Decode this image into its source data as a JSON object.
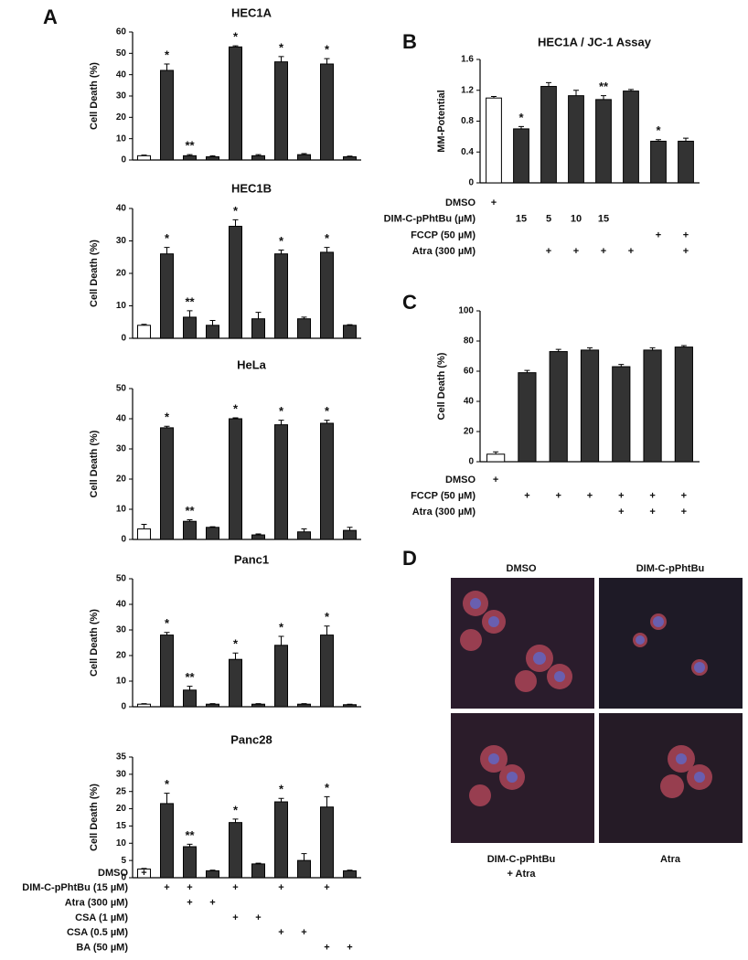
{
  "panel_letters": [
    "A",
    "B",
    "C",
    "D"
  ],
  "chart_data": [
    {
      "type": "bar",
      "title": "HEC1A",
      "y_label": "Cell Death (%)",
      "ylim": [
        0,
        60
      ],
      "yticks": [
        0,
        10,
        20,
        30,
        40,
        50,
        60
      ],
      "values": [
        2,
        42,
        2,
        1.5,
        53,
        2,
        46,
        2.5,
        45,
        1.5
      ],
      "errors": [
        0.3,
        3,
        0.5,
        0.5,
        0.5,
        0.5,
        2.5,
        0.5,
        2.5,
        0.3
      ],
      "stars": [
        null,
        "*",
        "**",
        null,
        "*",
        null,
        "*",
        null,
        "*",
        null
      ],
      "colors": [
        "#ffffff",
        "#333333",
        "#333333",
        "#333333",
        "#333333",
        "#333333",
        "#333333",
        "#333333",
        "#333333",
        "#333333"
      ]
    },
    {
      "type": "bar",
      "title": "HEC1B",
      "y_label": "Cell Death (%)",
      "ylim": [
        0,
        40
      ],
      "yticks": [
        0,
        10,
        20,
        30,
        40
      ],
      "values": [
        4,
        26,
        6.5,
        4,
        34.5,
        6,
        26,
        6,
        26.5,
        4
      ],
      "errors": [
        0.3,
        2,
        2,
        1.5,
        2,
        2,
        1.2,
        0.5,
        1.5,
        0.2
      ],
      "stars": [
        null,
        "*",
        "**",
        null,
        "*",
        null,
        "*",
        null,
        "*",
        null
      ],
      "colors": [
        "#ffffff",
        "#333333",
        "#333333",
        "#333333",
        "#333333",
        "#333333",
        "#333333",
        "#333333",
        "#333333",
        "#333333"
      ]
    },
    {
      "type": "bar",
      "title": "HeLa",
      "y_label": "Cell Death (%)",
      "ylim": [
        0,
        50
      ],
      "yticks": [
        0,
        10,
        20,
        30,
        40,
        50
      ],
      "values": [
        3.5,
        37,
        6,
        4,
        40,
        1.5,
        38,
        2.5,
        38.5,
        3
      ],
      "errors": [
        1.5,
        0.5,
        0.5,
        0.2,
        0.3,
        0.3,
        1.5,
        1,
        1,
        1
      ],
      "stars": [
        null,
        "*",
        "**",
        null,
        "*",
        null,
        "*",
        null,
        "*",
        null
      ],
      "colors": [
        "#ffffff",
        "#333333",
        "#333333",
        "#333333",
        "#333333",
        "#333333",
        "#333333",
        "#333333",
        "#333333",
        "#333333"
      ]
    },
    {
      "type": "bar",
      "title": "Panc1",
      "y_label": "Cell Death (%)",
      "ylim": [
        0,
        50
      ],
      "yticks": [
        0,
        10,
        20,
        30,
        40,
        50
      ],
      "values": [
        1,
        28,
        6.5,
        1,
        18.5,
        1,
        24,
        1,
        28,
        0.8
      ],
      "errors": [
        0.2,
        1,
        1.5,
        0.2,
        2.5,
        0.2,
        3.5,
        0.2,
        3.5,
        0.2
      ],
      "stars": [
        null,
        "*",
        "**",
        null,
        "*",
        null,
        "*",
        null,
        "*",
        null
      ],
      "colors": [
        "#ffffff",
        "#333333",
        "#333333",
        "#333333",
        "#333333",
        "#333333",
        "#333333",
        "#333333",
        "#333333",
        "#333333"
      ]
    },
    {
      "type": "bar",
      "title": "Panc28",
      "y_label": "Cell Death (%)",
      "ylim": [
        0,
        35
      ],
      "yticks": [
        0,
        5,
        10,
        15,
        20,
        25,
        30,
        35
      ],
      "values": [
        2.5,
        21.5,
        9,
        2,
        16,
        4,
        22,
        5,
        20.5,
        2
      ],
      "errors": [
        0.2,
        3,
        0.7,
        0.2,
        1,
        0.2,
        1,
        2,
        3,
        0.2
      ],
      "stars": [
        null,
        "*",
        "**",
        null,
        "*",
        null,
        "*",
        null,
        "*",
        null
      ],
      "colors": [
        "#ffffff",
        "#333333",
        "#333333",
        "#333333",
        "#333333",
        "#333333",
        "#333333",
        "#333333",
        "#333333",
        "#333333"
      ]
    },
    {
      "type": "bar",
      "title": "HEC1A / JC-1 Assay",
      "y_label": "MM-Potential",
      "ylim": [
        0,
        1.6
      ],
      "yticks": [
        0,
        0.4,
        0.8,
        1.2,
        1.6
      ],
      "values": [
        1.1,
        0.7,
        1.25,
        1.13,
        1.08,
        1.19,
        0.54,
        0.54
      ],
      "errors": [
        0.02,
        0.03,
        0.05,
        0.07,
        0.05,
        0.02,
        0.02,
        0.04
      ],
      "stars": [
        null,
        "*",
        null,
        null,
        "**",
        null,
        "*",
        null
      ],
      "colors": [
        "#ffffff",
        "#333333",
        "#333333",
        "#333333",
        "#333333",
        "#333333",
        "#333333",
        "#333333"
      ]
    },
    {
      "type": "bar",
      "y_label": "Cell Death (%)",
      "ylim": [
        0,
        100
      ],
      "yticks": [
        0,
        20,
        40,
        60,
        80,
        100
      ],
      "values": [
        5,
        59,
        73,
        74,
        63,
        74,
        76
      ],
      "errors": [
        1.5,
        1.5,
        1.5,
        1.5,
        1.5,
        1.5,
        1
      ],
      "stars": [
        null,
        null,
        null,
        null,
        null,
        null,
        null
      ],
      "colors": [
        "#ffffff",
        "#333333",
        "#333333",
        "#333333",
        "#333333",
        "#333333",
        "#333333"
      ]
    }
  ],
  "conditions": {
    "A": [
      {
        "label": "DMSO",
        "marks": [
          "+",
          null,
          null,
          null,
          null,
          null,
          null,
          null,
          null,
          null
        ]
      },
      {
        "label": "DIM-C-pPhtBu (15 µM)",
        "marks": [
          null,
          "+",
          "+",
          null,
          "+",
          null,
          "+",
          null,
          "+",
          null
        ]
      },
      {
        "label": "Atra (300 µM)",
        "marks": [
          null,
          null,
          "+",
          "+",
          null,
          null,
          null,
          null,
          null,
          null
        ]
      },
      {
        "label": "CSA (1 µM)",
        "marks": [
          null,
          null,
          null,
          null,
          "+",
          "+",
          null,
          null,
          null,
          null
        ]
      },
      {
        "label": "CSA (0.5 µM)",
        "marks": [
          null,
          null,
          null,
          null,
          null,
          null,
          "+",
          "+",
          null,
          null
        ]
      },
      {
        "label": "BA (50 µM)",
        "marks": [
          null,
          null,
          null,
          null,
          null,
          null,
          null,
          null,
          "+",
          "+"
        ]
      }
    ],
    "B": [
      {
        "label": "DMSO",
        "marks": [
          "+",
          null,
          null,
          null,
          null,
          null,
          null,
          null
        ]
      },
      {
        "label": "DIM-C-pPhtBu (µM)",
        "marks": [
          null,
          "15",
          "5",
          "10",
          "15",
          null,
          null,
          null
        ]
      },
      {
        "label": "FCCP (50 µM)",
        "marks": [
          null,
          null,
          null,
          null,
          null,
          null,
          "+",
          "+"
        ]
      },
      {
        "label": "Atra (300 µM)",
        "marks": [
          null,
          null,
          "+",
          "+",
          "+",
          "+",
          null,
          "+"
        ]
      }
    ],
    "C": [
      {
        "label": "DMSO",
        "marks": [
          "+",
          null,
          null,
          null,
          null,
          null,
          null
        ]
      },
      {
        "label": "FCCP (50 µM)",
        "marks": [
          null,
          "+",
          "+",
          "+",
          "+",
          "+",
          "+"
        ]
      },
      {
        "label": "Atra (300 µM)",
        "marks": [
          null,
          null,
          null,
          null,
          "+",
          "+",
          "+"
        ]
      }
    ]
  },
  "micrographs": [
    [
      "DMSO"
    ],
    [
      "DIM-C-pPhtBu"
    ],
    [
      "DIM-C-pPhtBu",
      "+ Atra"
    ],
    [
      "Atra"
    ]
  ]
}
